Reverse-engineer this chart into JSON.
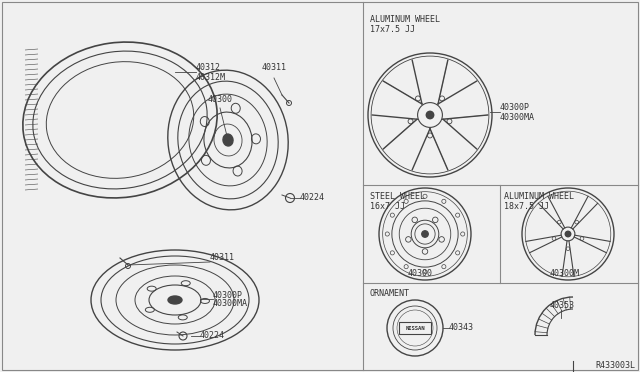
{
  "bg_color": "#f0f0f0",
  "line_color": "#444444",
  "border_color": "#888888",
  "text_color": "#333333",
  "labels": {
    "alum17": "ALUMINUM WHEEL\n17x7.5 JJ",
    "alum17_part1": "40300P",
    "alum17_part2": "40300MA",
    "steel16_title": "STEEL WHEEL\n16x7 JJ",
    "steel16_part": "40300",
    "alum18_title": "ALUMINUM WHEEL\n18x7.5 JJ",
    "alum18_part": "40300M",
    "ornament": "ORNAMENT",
    "orn_part": "40343",
    "arc_part": "40353",
    "ref": "R433003L",
    "tire_part1": "40312",
    "tire_part2": "40312M",
    "valve1": "40311",
    "valve2": "40311",
    "hub_top": "40300",
    "nut1": "40224",
    "nut2": "40224",
    "wheel_left_part1": "40300P",
    "wheel_left_part2": "40300MA"
  }
}
